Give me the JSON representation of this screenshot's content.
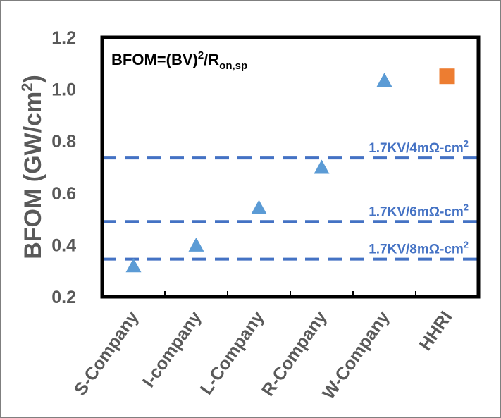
{
  "chart_data": {
    "type": "scatter",
    "title": "",
    "ylabel": "BFOM (GW/cm²)",
    "ylabel_parts": {
      "main": "BFOM (GW/cm",
      "sup": "2",
      "end": ")"
    },
    "ylim": [
      0.2,
      1.2
    ],
    "yticks": [
      "0.2",
      "0.4",
      "0.6",
      "0.8",
      "1.0",
      "1.2"
    ],
    "categories": [
      "S-Company",
      "I-company",
      "L-Company",
      "R-Company",
      "W-Company",
      "HHRI"
    ],
    "grid": false,
    "series": [
      {
        "marker": "triangle",
        "color": "#5b9bd5",
        "values": [
          0.315,
          0.395,
          0.54,
          0.695,
          1.03,
          null
        ]
      },
      {
        "marker": "square",
        "color": "#ed7d31",
        "values": [
          null,
          null,
          null,
          null,
          null,
          1.05
        ]
      }
    ],
    "formula": {
      "text": "BFOM=(BV)",
      "sup": "2",
      "mid": "/R",
      "sub": "on,sp"
    },
    "reference_lines": [
      {
        "value": 0.735,
        "label": "1.7KV/4mΩ-cm²",
        "label_parts": {
          "text": "1.7KV/4mΩ-cm",
          "sup": "2"
        }
      },
      {
        "value": 0.49,
        "label": "1.7KV/6mΩ-cm²",
        "label_parts": {
          "text": "1.7KV/6mΩ-cm",
          "sup": "2"
        }
      },
      {
        "value": 0.345,
        "label": "1.7KV/8mΩ-cm²",
        "label_parts": {
          "text": "1.7KV/8mΩ-cm",
          "sup": "2"
        }
      }
    ],
    "reference_line_color": "#4472c4"
  }
}
